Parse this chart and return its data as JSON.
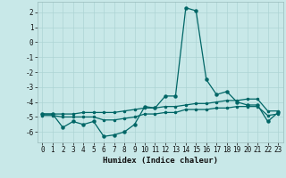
{
  "xlabel": "Humidex (Indice chaleur)",
  "bg_color": "#c8e8e8",
  "grid_color": "#add4d4",
  "line_color": "#006666",
  "xlim": [
    -0.5,
    23.5
  ],
  "ylim": [
    -6.7,
    2.7
  ],
  "x": [
    0,
    1,
    2,
    3,
    4,
    5,
    6,
    7,
    8,
    9,
    10,
    11,
    12,
    13,
    14,
    15,
    16,
    17,
    18,
    19,
    20,
    21,
    22,
    23
  ],
  "line_main": [
    -4.8,
    -4.8,
    -5.7,
    -5.3,
    -5.5,
    -5.3,
    -6.3,
    -6.2,
    -6.0,
    -5.5,
    -4.3,
    -4.4,
    -3.6,
    -3.6,
    2.3,
    2.1,
    -2.5,
    -3.5,
    -3.3,
    -4.0,
    -4.2,
    -4.2,
    -5.3,
    -4.7
  ],
  "line_upper": [
    -4.8,
    -4.8,
    -4.8,
    -4.8,
    -4.7,
    -4.7,
    -4.7,
    -4.7,
    -4.6,
    -4.5,
    -4.4,
    -4.4,
    -4.3,
    -4.3,
    -4.2,
    -4.1,
    -4.1,
    -4.0,
    -3.9,
    -3.9,
    -3.8,
    -3.8,
    -4.6,
    -4.6
  ],
  "line_lower": [
    -4.9,
    -4.9,
    -5.0,
    -5.0,
    -5.0,
    -5.0,
    -5.2,
    -5.2,
    -5.1,
    -5.0,
    -4.8,
    -4.8,
    -4.7,
    -4.7,
    -4.5,
    -4.5,
    -4.5,
    -4.4,
    -4.4,
    -4.3,
    -4.3,
    -4.3,
    -4.9,
    -4.8
  ]
}
